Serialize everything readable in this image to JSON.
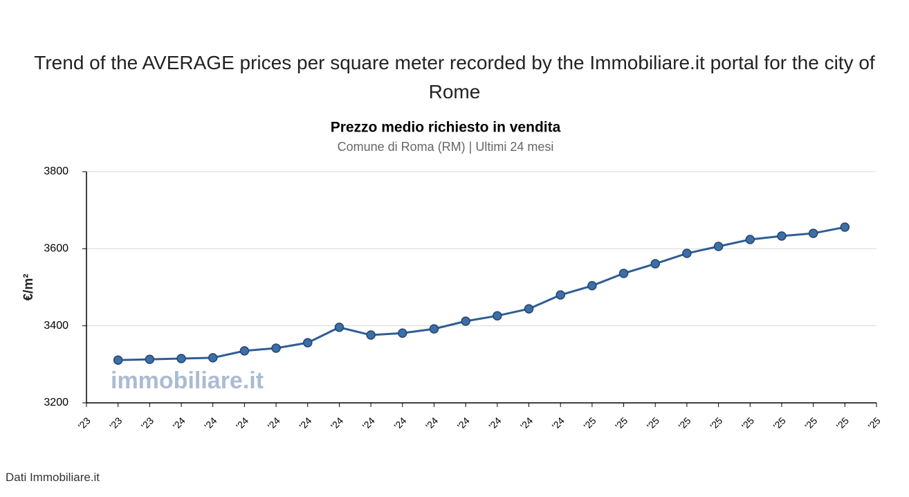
{
  "page_title": "Trend of the AVERAGE prices per square meter recorded by the Immobiliare.it portal for the city of Rome",
  "footer": "Dati Immobiliare.it",
  "chart_data": {
    "type": "line",
    "title": "Prezzo medio richiesto in vendita",
    "subtitle": "Comune di Roma (RM) | Ultimi 24 mesi",
    "y_label": "€/m²",
    "watermark": "immobiliare.it",
    "categories": [
      "'23",
      "'23",
      "'23",
      "'24",
      "'24",
      "'24",
      "'24",
      "'24",
      "'24",
      "'24",
      "'24",
      "'24",
      "'24",
      "'24",
      "'24",
      "'24",
      "'25",
      "'25",
      "'25",
      "'25",
      "'25",
      "'25",
      "'25",
      "'25",
      "'25",
      "'25"
    ],
    "series": [
      {
        "color": "#2f5d95",
        "values": [
          null,
          3311,
          3313,
          3315,
          3317,
          3335,
          3342,
          3356,
          3396,
          3376,
          3381,
          3392,
          3412,
          3426,
          3444,
          3480,
          3504,
          3536,
          3561,
          3588,
          3606,
          3624,
          3633,
          3640,
          3656,
          null
        ]
      }
    ],
    "ylim": [
      3200,
      3800
    ],
    "yticks": [
      3200,
      3400,
      3600,
      3800
    ],
    "grid": true
  }
}
